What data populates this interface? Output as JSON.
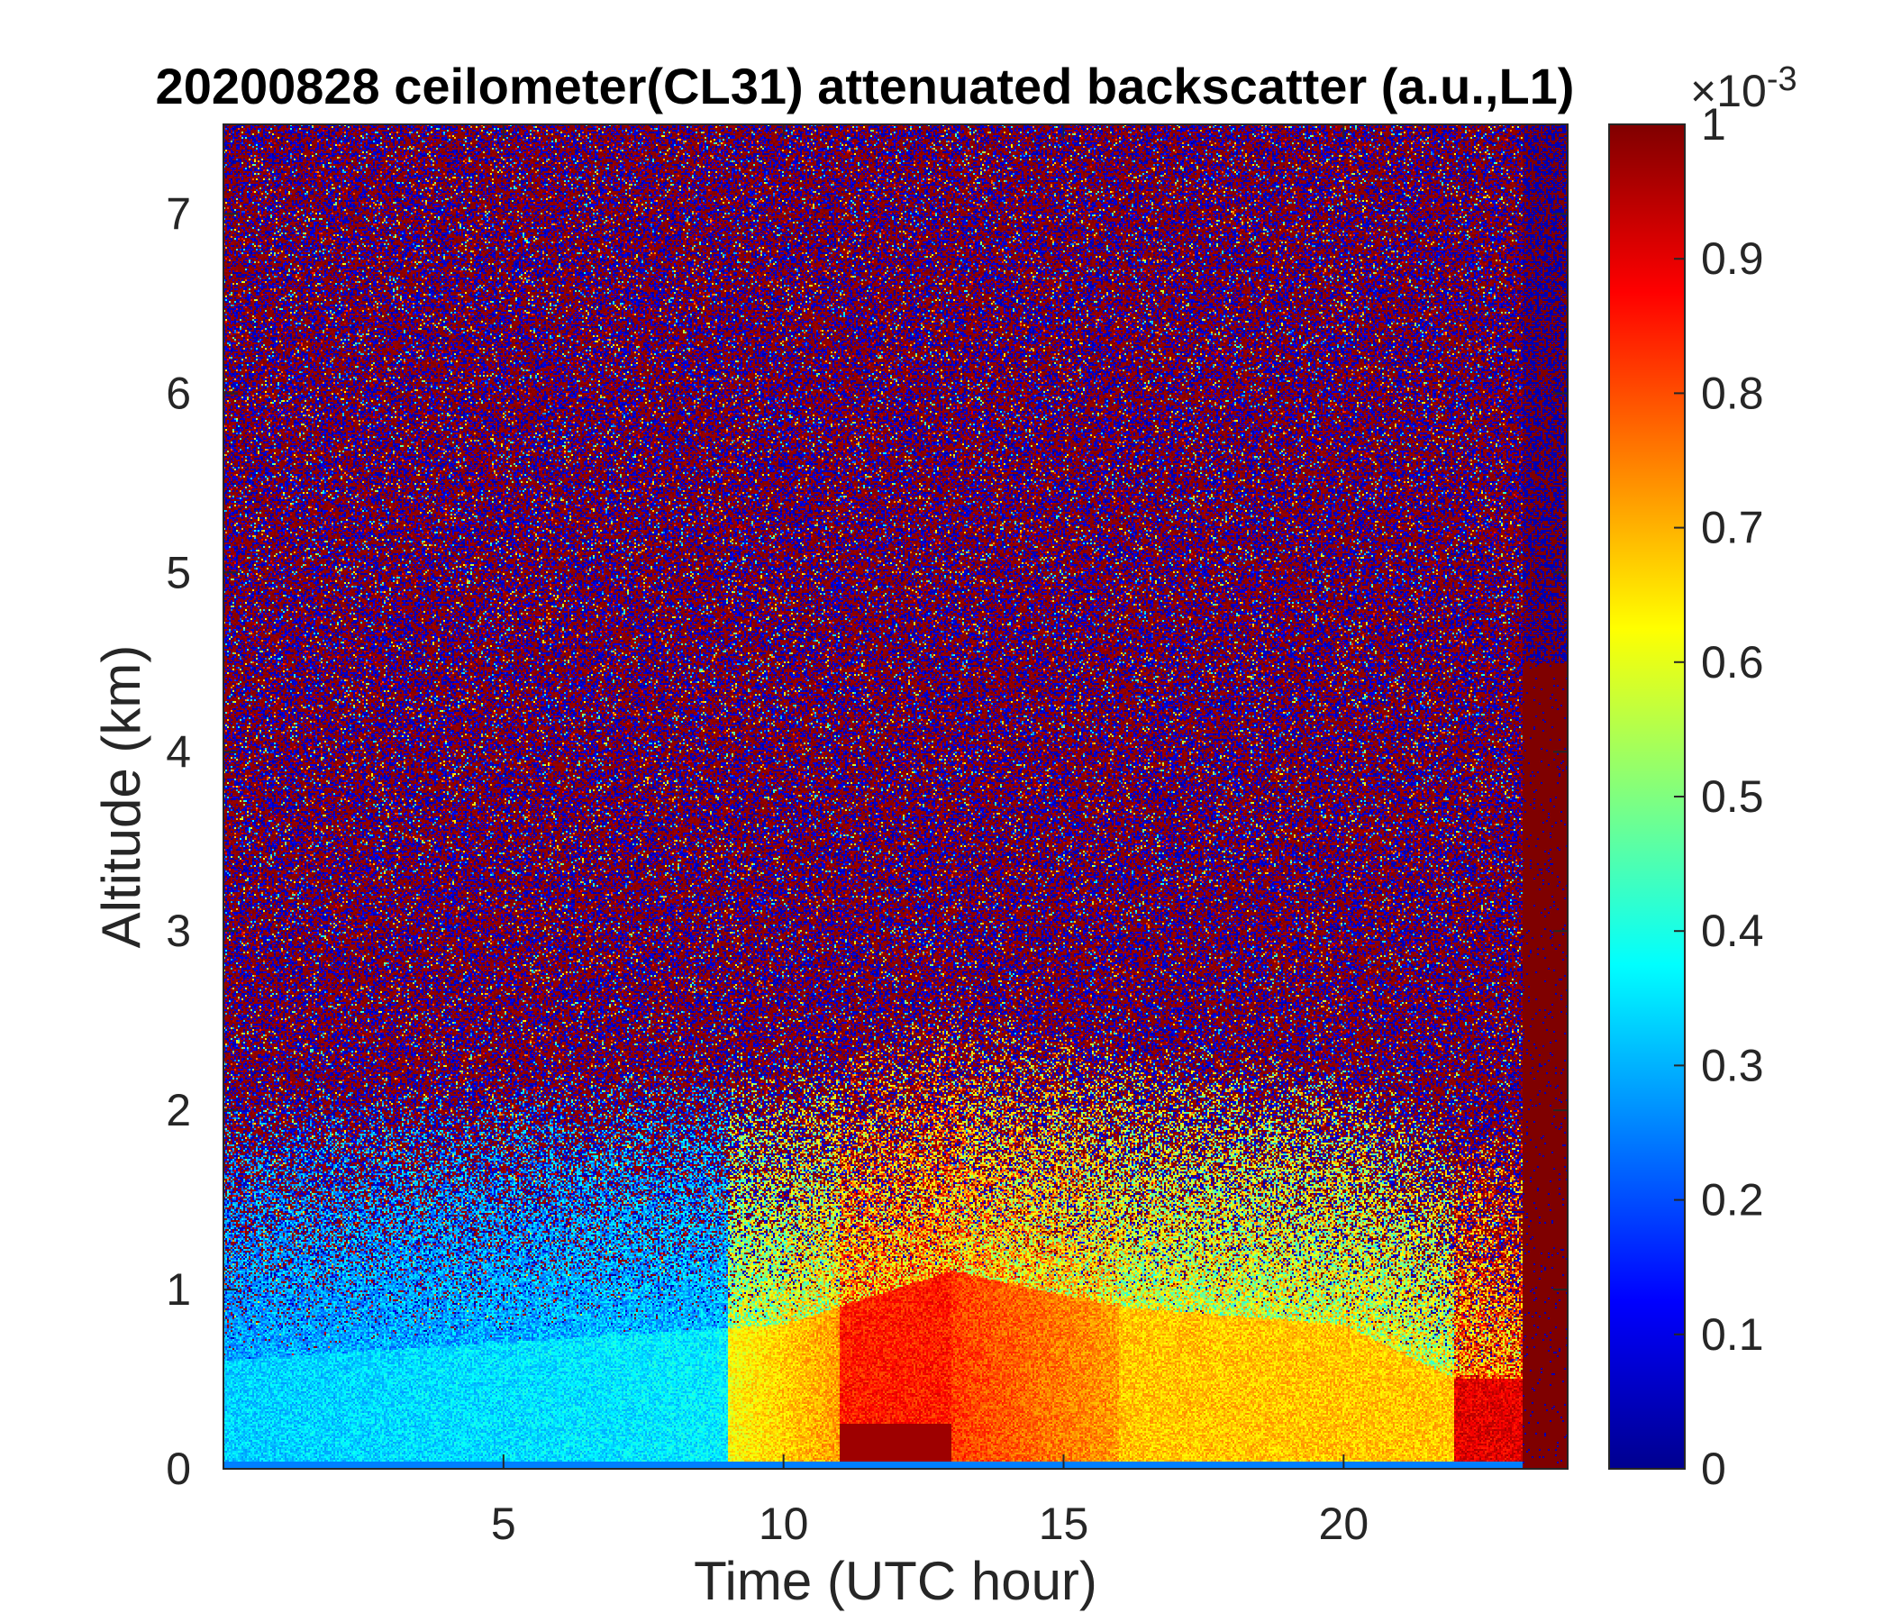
{
  "chart_data": {
    "type": "heatmap",
    "title": "20200828 ceilometer(CL31) attenuated backscatter (a.u.,L1)",
    "xlabel": "Time (UTC hour)",
    "ylabel": "Altitude (km)",
    "xlim": [
      0,
      24
    ],
    "ylim": [
      0,
      7.5
    ],
    "x_ticks": [
      5,
      10,
      15,
      20
    ],
    "y_ticks": [
      0,
      1,
      2,
      3,
      4,
      5,
      6,
      7
    ],
    "colorbar": {
      "colormap": "jet",
      "clim": [
        0,
        1
      ],
      "ticks": [
        0,
        0.1,
        0.2,
        0.3,
        0.4,
        0.5,
        0.6,
        0.7,
        0.8,
        0.9,
        1
      ],
      "exponent_base": "×10",
      "exponent_power": "-3"
    },
    "grid": false,
    "features": {
      "noisy_background_above_km": 1.5,
      "boundary_layer_top_km": [
        {
          "time": 0,
          "height": 0.6
        },
        {
          "time": 5,
          "height": 0.7
        },
        {
          "time": 10,
          "height": 0.8
        },
        {
          "time": 13,
          "height": 1.1
        },
        {
          "time": 16,
          "height": 0.9
        },
        {
          "time": 20,
          "height": 0.8
        },
        {
          "time": 22,
          "height": 0.5
        }
      ],
      "high_backscatter_surface_window_hours": [
        11,
        13
      ]
    }
  }
}
